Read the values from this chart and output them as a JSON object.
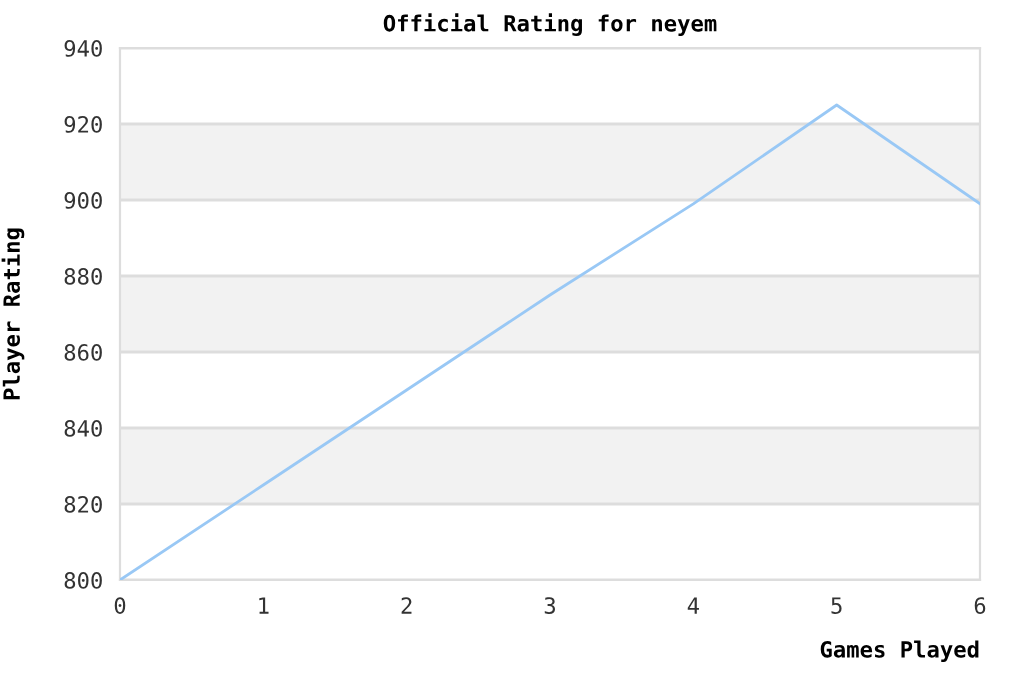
{
  "chart_data": {
    "type": "line",
    "title": "Official Rating for neyem",
    "xlabel": "Games Played",
    "ylabel": "Player Rating",
    "x": [
      0,
      1,
      2,
      3,
      4,
      5,
      6
    ],
    "series": [
      {
        "color": "#99c8f5",
        "values": [
          800,
          825,
          850,
          875,
          899,
          925,
          899
        ]
      }
    ],
    "xlim": [
      0,
      6
    ],
    "xticks": [
      0,
      1,
      2,
      3,
      4,
      5,
      6
    ],
    "ylim": [
      800,
      940
    ],
    "yticks": [
      800,
      820,
      840,
      860,
      880,
      900,
      920,
      940
    ],
    "grid": "y",
    "marker": "none",
    "line_style": "solid",
    "bands": [
      {
        "axis": "y",
        "from": 820,
        "to": 840,
        "color": "#f2f2f2"
      },
      {
        "axis": "y",
        "from": 860,
        "to": 880,
        "color": "#f2f2f2"
      },
      {
        "axis": "y",
        "from": 900,
        "to": 920,
        "color": "#f2f2f2"
      }
    ]
  }
}
